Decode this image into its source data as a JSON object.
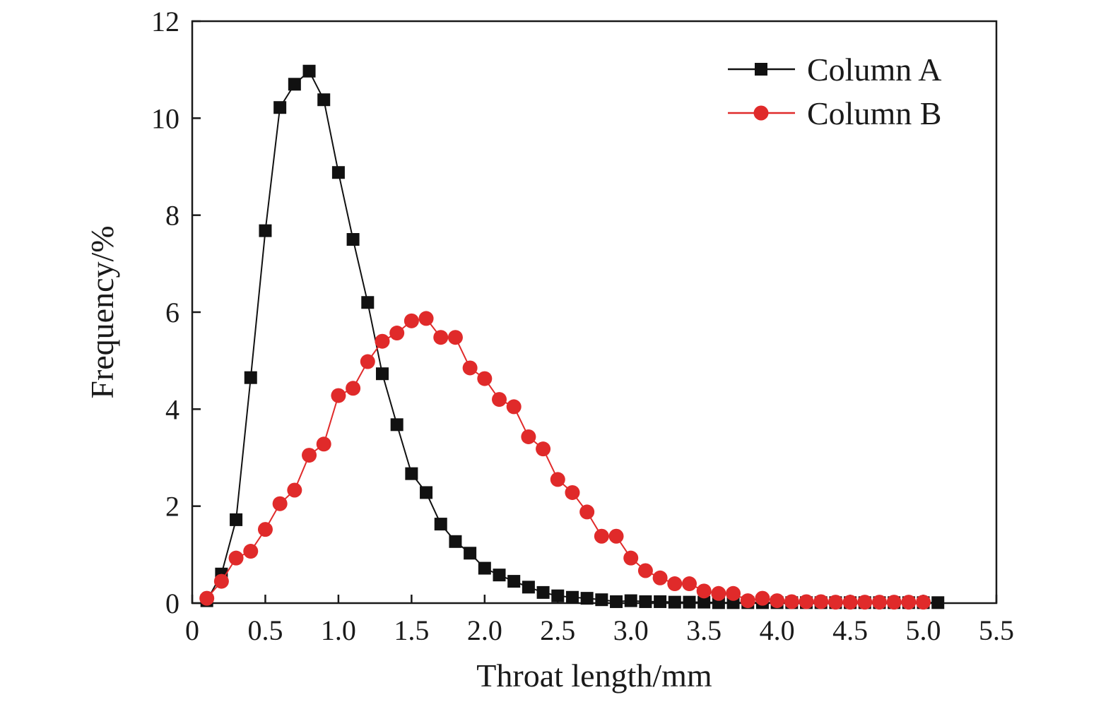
{
  "chart_data": {
    "type": "line",
    "xlabel": "Throat length/mm",
    "ylabel": "Frequency/%",
    "xlim": [
      0,
      5.5
    ],
    "ylim": [
      0,
      12
    ],
    "x_ticks": [
      0,
      0.5,
      1.0,
      1.5,
      2.0,
      2.5,
      3.0,
      3.5,
      4.0,
      4.5,
      5.0,
      5.5
    ],
    "x_tick_labels": [
      "0",
      "0.5",
      "1.0",
      "1.5",
      "2.0",
      "2.5",
      "3.0",
      "3.5",
      "4.0",
      "4.5",
      "5.0",
      "5.5"
    ],
    "y_ticks": [
      0,
      2,
      4,
      6,
      8,
      10,
      12
    ],
    "y_tick_labels": [
      "0",
      "2",
      "4",
      "6",
      "8",
      "10",
      "12"
    ],
    "grid": false,
    "legend": {
      "placement": "top-right"
    },
    "series": [
      {
        "name": "Column A",
        "color": "#111111",
        "marker": "square",
        "x": [
          0.1,
          0.2,
          0.3,
          0.4,
          0.5,
          0.6,
          0.7,
          0.8,
          0.9,
          1.0,
          1.1,
          1.2,
          1.3,
          1.4,
          1.5,
          1.6,
          1.7,
          1.8,
          1.9,
          2.0,
          2.1,
          2.2,
          2.3,
          2.4,
          2.5,
          2.6,
          2.7,
          2.8,
          2.9,
          3.0,
          3.1,
          3.2,
          3.3,
          3.4,
          3.5,
          3.6,
          3.7,
          3.8,
          3.9,
          4.0,
          4.1,
          4.2,
          4.3,
          4.4,
          4.5,
          4.6,
          4.7,
          4.8,
          4.9,
          5.0,
          5.1
        ],
        "y": [
          0.05,
          0.6,
          1.72,
          4.65,
          7.68,
          10.22,
          10.7,
          10.97,
          10.38,
          8.88,
          7.5,
          6.2,
          4.73,
          3.68,
          2.67,
          2.28,
          1.63,
          1.27,
          1.03,
          0.72,
          0.58,
          0.45,
          0.33,
          0.22,
          0.15,
          0.12,
          0.1,
          0.07,
          0.03,
          0.05,
          0.03,
          0.03,
          0.02,
          0.02,
          0.02,
          0.01,
          0.01,
          0.01,
          0.01,
          0.01,
          0.01,
          0.01,
          0.01,
          0.01,
          0.01,
          0.01,
          0.01,
          0.01,
          0.01,
          0.01,
          0.01
        ]
      },
      {
        "name": "Column B",
        "color": "#e02a2a",
        "marker": "circle",
        "x": [
          0.1,
          0.2,
          0.3,
          0.4,
          0.5,
          0.6,
          0.7,
          0.8,
          0.9,
          1.0,
          1.1,
          1.2,
          1.3,
          1.4,
          1.5,
          1.6,
          1.7,
          1.8,
          1.9,
          2.0,
          2.1,
          2.2,
          2.3,
          2.4,
          2.5,
          2.6,
          2.7,
          2.8,
          2.9,
          3.0,
          3.1,
          3.2,
          3.3,
          3.4,
          3.5,
          3.6,
          3.7,
          3.8,
          3.9,
          4.0,
          4.1,
          4.2,
          4.3,
          4.4,
          4.5,
          4.6,
          4.7,
          4.8,
          4.9,
          5.0
        ],
        "y": [
          0.1,
          0.45,
          0.93,
          1.07,
          1.52,
          2.05,
          2.33,
          3.05,
          3.28,
          4.28,
          4.43,
          4.98,
          5.4,
          5.57,
          5.82,
          5.87,
          5.48,
          5.48,
          4.85,
          4.63,
          4.2,
          4.05,
          3.43,
          3.18,
          2.55,
          2.28,
          1.88,
          1.38,
          1.38,
          0.93,
          0.67,
          0.52,
          0.4,
          0.4,
          0.25,
          0.2,
          0.2,
          0.05,
          0.1,
          0.05,
          0.03,
          0.03,
          0.03,
          0.02,
          0.02,
          0.02,
          0.02,
          0.02,
          0.02,
          0.02
        ]
      }
    ]
  }
}
